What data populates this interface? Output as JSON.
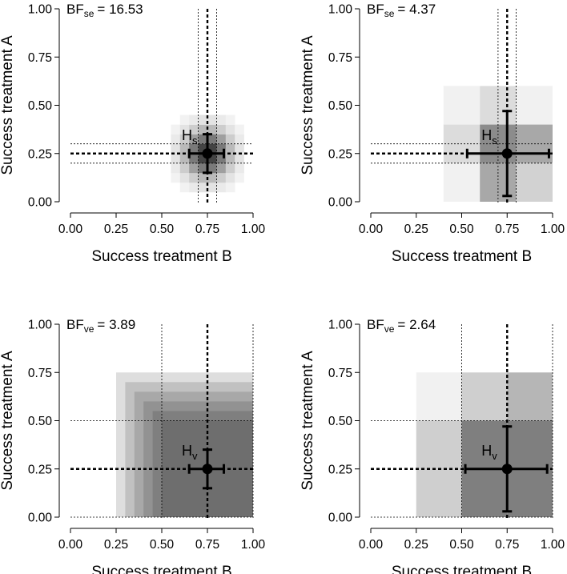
{
  "chart_data": [
    {
      "type": "heatmap",
      "panel": "top-left",
      "bf_text": "BF",
      "bf_sub": "se",
      "bf_value": "= 16.53",
      "xlabel": "Success treatment B",
      "ylabel": "Success treatment A",
      "xlim": [
        0,
        1
      ],
      "ylim": [
        0,
        1
      ],
      "xticks": [
        "0.00",
        "0.25",
        "0.50",
        "0.75",
        "1.00"
      ],
      "yticks": [
        "0.00",
        "0.25",
        "0.50",
        "0.75",
        "1.00"
      ],
      "hyp_label": "H",
      "hyp_sub": "s",
      "point": {
        "x": 0.75,
        "y": 0.25
      },
      "error_x": [
        0.65,
        0.84
      ],
      "error_y": [
        0.15,
        0.35
      ],
      "ref_v": [
        0.7,
        0.75,
        0.8
      ],
      "ref_h": [
        0.2,
        0.25,
        0.3
      ],
      "grid": {
        "x0": 0.5,
        "y0": 0.0,
        "step": 0.05,
        "cols": 10,
        "rows": 10,
        "center_x": 0.75,
        "center_y": 0.25,
        "spread": 0.085,
        "max_darkness": 0.88
      }
    },
    {
      "type": "heatmap",
      "panel": "top-right",
      "bf_text": "BF",
      "bf_sub": "se",
      "bf_value": "= 4.37",
      "xlabel": "Success treatment B",
      "ylabel": "Success treatment A",
      "xlim": [
        0,
        1
      ],
      "ylim": [
        0,
        1
      ],
      "xticks": [
        "0.00",
        "0.25",
        "0.50",
        "0.75",
        "1.00"
      ],
      "yticks": [
        "0.00",
        "0.25",
        "0.50",
        "0.75",
        "1.00"
      ],
      "hyp_label": "H",
      "hyp_sub": "s",
      "point": {
        "x": 0.75,
        "y": 0.25
      },
      "error_x": [
        0.53,
        0.98
      ],
      "error_y": [
        0.03,
        0.47
      ],
      "ref_v": [
        0.7,
        0.75,
        0.8
      ],
      "ref_h": [
        0.2,
        0.25,
        0.3
      ],
      "cells": [
        {
          "x0": 0.4,
          "x1": 0.6,
          "y0": 0.4,
          "y1": 0.6,
          "fill": "#f1f1f1"
        },
        {
          "x0": 0.6,
          "x1": 0.8,
          "y0": 0.4,
          "y1": 0.6,
          "fill": "#dcdcdc"
        },
        {
          "x0": 0.8,
          "x1": 1.0,
          "y0": 0.4,
          "y1": 0.6,
          "fill": "#f1f1f1"
        },
        {
          "x0": 0.4,
          "x1": 0.6,
          "y0": 0.2,
          "y1": 0.4,
          "fill": "#dcdcdc"
        },
        {
          "x0": 0.6,
          "x1": 0.8,
          "y0": 0.2,
          "y1": 0.4,
          "fill": "#8c8c8c"
        },
        {
          "x0": 0.8,
          "x1": 1.0,
          "y0": 0.2,
          "y1": 0.4,
          "fill": "#a8a8a8"
        },
        {
          "x0": 0.4,
          "x1": 0.6,
          "y0": 0.0,
          "y1": 0.2,
          "fill": "#f1f1f1"
        },
        {
          "x0": 0.6,
          "x1": 0.8,
          "y0": 0.0,
          "y1": 0.2,
          "fill": "#a8a8a8"
        },
        {
          "x0": 0.8,
          "x1": 1.0,
          "y0": 0.0,
          "y1": 0.2,
          "fill": "#d2d2d2"
        }
      ]
    },
    {
      "type": "heatmap",
      "panel": "bottom-left",
      "bf_text": "BF",
      "bf_sub": "ve",
      "bf_value": "= 3.89",
      "xlabel": "Success treatment B",
      "ylabel": "Success treatment A",
      "xlim": [
        0,
        1
      ],
      "ylim": [
        0,
        1
      ],
      "xticks": [
        "0.00",
        "0.25",
        "0.50",
        "0.75",
        "1.00"
      ],
      "yticks": [
        "0.00",
        "0.25",
        "0.50",
        "0.75",
        "1.00"
      ],
      "hyp_label": "H",
      "hyp_sub": "v",
      "point": {
        "x": 0.75,
        "y": 0.25
      },
      "error_x": [
        0.65,
        0.84
      ],
      "error_y": [
        0.15,
        0.35
      ],
      "ref_v": [
        0.5,
        0.75,
        1.0
      ],
      "ref_h": [
        0.0,
        0.25,
        0.5
      ],
      "nested": {
        "x_end": 1.0,
        "y_start": 0.0,
        "x_starts": [
          0.25,
          0.3,
          0.35,
          0.4,
          0.45,
          0.5
        ],
        "y_ends": [
          0.75,
          0.7,
          0.65,
          0.6,
          0.55,
          0.5
        ],
        "opacity": 0.13
      }
    },
    {
      "type": "heatmap",
      "panel": "bottom-right",
      "bf_text": "BF",
      "bf_sub": "ve",
      "bf_value": "= 2.64",
      "xlabel": "Success treatment B",
      "ylabel": "Success treatment A",
      "xlim": [
        0,
        1
      ],
      "ylim": [
        0,
        1
      ],
      "xticks": [
        "0.00",
        "0.25",
        "0.50",
        "0.75",
        "1.00"
      ],
      "yticks": [
        "0.00",
        "0.25",
        "0.50",
        "0.75",
        "1.00"
      ],
      "hyp_label": "H",
      "hyp_sub": "v",
      "point": {
        "x": 0.75,
        "y": 0.25
      },
      "error_x": [
        0.52,
        0.97
      ],
      "error_y": [
        0.03,
        0.47
      ],
      "ref_v": [
        0.5,
        0.75,
        1.0
      ],
      "ref_h": [
        0.0,
        0.25,
        0.5
      ],
      "cells": [
        {
          "x0": 0.25,
          "x1": 0.5,
          "y0": 0.5,
          "y1": 0.75,
          "fill": "#f1f1f1"
        },
        {
          "x0": 0.5,
          "x1": 0.75,
          "y0": 0.5,
          "y1": 0.75,
          "fill": "#cfcfcf"
        },
        {
          "x0": 0.75,
          "x1": 1.0,
          "y0": 0.5,
          "y1": 0.75,
          "fill": "#b6b6b6"
        },
        {
          "x0": 0.25,
          "x1": 0.5,
          "y0": 0.0,
          "y1": 0.5,
          "fill": "#cfcfcf"
        },
        {
          "x0": 0.5,
          "x1": 0.75,
          "y0": 0.0,
          "y1": 0.5,
          "fill": "#7f7f7f"
        },
        {
          "x0": 0.75,
          "x1": 1.0,
          "y0": 0.0,
          "y1": 0.5,
          "fill": "#7f7f7f"
        }
      ]
    }
  ]
}
